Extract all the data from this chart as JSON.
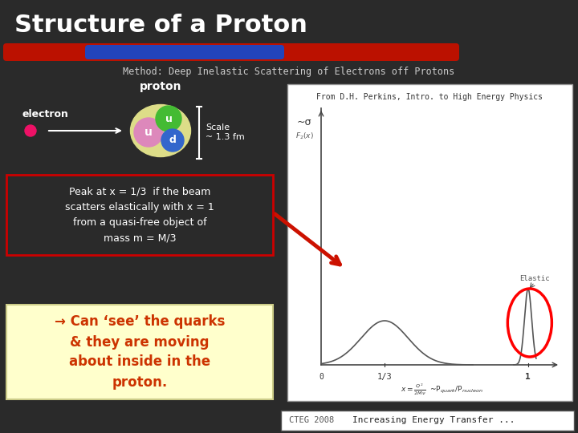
{
  "title": "Structure of a Proton",
  "subtitle": "Method: Deep Inelastic Scattering of Electrons off Protons",
  "background_color": "#2a2a2a",
  "title_color": "#ffffff",
  "subtitle_color": "#cccccc",
  "blue_bar_color": "#2244bb",
  "red_bar_color": "#bb1100",
  "proton_label": "proton",
  "electron_label": "electron",
  "scale_label": "Scale\n~ 1.3 fm",
  "quark_u1_color": "#dd88bb",
  "quark_u2_color": "#44bb33",
  "quark_d_color": "#3366cc",
  "proton_body_color": "#dddd88",
  "peak_text": "Peak at x = 1/3  if the beam\nscatters elastically with x = 1\nfrom a quasi-free object of\nmass m = M/3",
  "arrow_text": "→ Can ‘see’ the quarks\n& they are moving\nabout inside in the\nproton.",
  "plot_citation": "From D.H. Perkins, Intro. to High Energy Physics",
  "elastic_label": "Elastic",
  "bottom_left_label": "CTEG 2008",
  "bottom_right_label": "Increasing Energy Transfer ...",
  "peak_box_color": "#cc0000",
  "peak_text_color": "#ffffff",
  "arrow_box_color": "#ffffcc",
  "arrow_text_color": "#cc3300"
}
